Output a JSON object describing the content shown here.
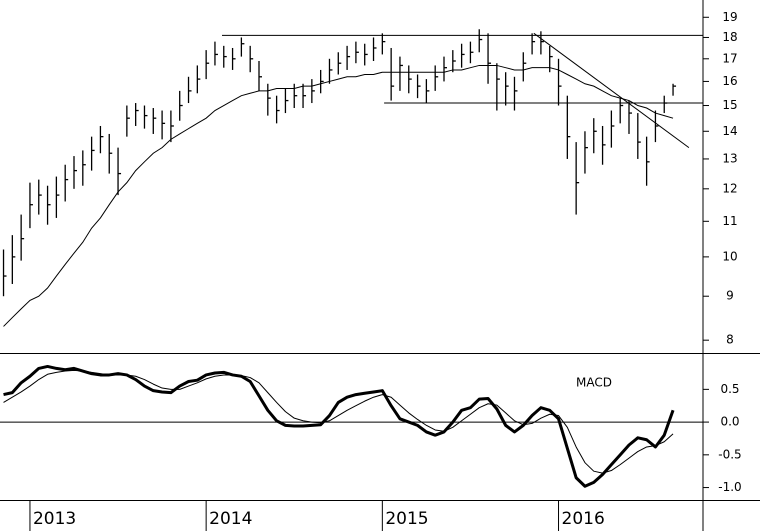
{
  "chart_data": [
    {
      "type": "ohlc",
      "log": true,
      "x": [
        2012.85,
        2012.9,
        2012.95,
        2013,
        2013.05,
        2013.1,
        2013.15,
        2013.2,
        2013.25,
        2013.3,
        2013.35,
        2013.4,
        2013.45,
        2013.5,
        2013.55,
        2013.6,
        2013.65,
        2013.7,
        2013.75,
        2013.8,
        2013.85,
        2013.9,
        2013.95,
        2014,
        2014.05,
        2014.1,
        2014.15,
        2014.2,
        2014.25,
        2014.3,
        2014.35,
        2014.4,
        2014.45,
        2014.5,
        2014.55,
        2014.6,
        2014.65,
        2014.7,
        2014.75,
        2014.8,
        2014.85,
        2014.9,
        2014.95,
        2015,
        2015.05,
        2015.1,
        2015.15,
        2015.2,
        2015.25,
        2015.3,
        2015.35,
        2015.4,
        2015.45,
        2015.5,
        2015.55,
        2015.6,
        2015.65,
        2015.7,
        2015.75,
        2015.8,
        2015.85,
        2015.9,
        2015.95,
        2016,
        2016.05,
        2016.1,
        2016.15,
        2016.2,
        2016.25,
        2016.3,
        2016.35,
        2016.4,
        2016.45,
        2016.5,
        2016.55,
        2016.6,
        2016.65
      ],
      "high": [
        10.2,
        10.6,
        11.2,
        12.2,
        12.3,
        12.1,
        12.4,
        12.8,
        13.1,
        13.3,
        13.8,
        14.2,
        13.9,
        13.4,
        15.0,
        15.1,
        15.0,
        14.9,
        14.8,
        14.8,
        15.6,
        16.2,
        16.7,
        17.4,
        17.8,
        17.6,
        17.5,
        18.0,
        17.6,
        16.9,
        15.9,
        15.4,
        15.7,
        15.9,
        15.9,
        16.1,
        16.5,
        17.0,
        17.3,
        17.6,
        17.8,
        17.7,
        18.0,
        18.2,
        17.5,
        17.1,
        16.7,
        16.3,
        16.1,
        16.7,
        17.1,
        17.4,
        17.7,
        17.8,
        18.4,
        18.2,
        16.8,
        16.4,
        16.2,
        17.3,
        18.2,
        18.3,
        17.6,
        17.0,
        15.4,
        13.6,
        14.0,
        14.5,
        14.2,
        14.8,
        15.3,
        15.2,
        14.7,
        13.8,
        14.8,
        15.4,
        15.9
      ],
      "low": [
        9.0,
        9.3,
        9.9,
        10.8,
        11.2,
        10.9,
        11.1,
        11.6,
        12.0,
        12.1,
        12.6,
        13.2,
        12.5,
        11.8,
        13.8,
        14.2,
        14.1,
        13.9,
        13.7,
        13.6,
        14.4,
        15.1,
        15.5,
        16.1,
        16.7,
        16.6,
        16.5,
        17.1,
        16.4,
        15.6,
        14.6,
        14.3,
        14.7,
        14.9,
        14.9,
        15.1,
        15.5,
        15.9,
        16.3,
        16.5,
        16.8,
        16.7,
        16.9,
        17.2,
        15.2,
        15.6,
        15.5,
        15.3,
        15.1,
        15.6,
        16.0,
        16.4,
        16.6,
        16.8,
        17.3,
        15.9,
        14.8,
        15.0,
        14.8,
        16.0,
        17.2,
        17.2,
        16.4,
        15.0,
        13.0,
        11.2,
        12.5,
        13.2,
        12.8,
        13.4,
        14.3,
        13.9,
        13.0,
        12.1,
        13.6,
        14.7,
        15.4
      ],
      "close": [
        9.5,
        10.0,
        10.5,
        11.5,
        11.8,
        11.5,
        11.8,
        12.3,
        12.6,
        12.8,
        13.3,
        13.8,
        13.2,
        12.5,
        14.5,
        14.8,
        14.6,
        14.5,
        14.3,
        14.2,
        15.0,
        15.6,
        16.1,
        16.8,
        17.2,
        17.1,
        17.0,
        17.7,
        17.0,
        16.2,
        15.3,
        14.8,
        15.2,
        15.4,
        15.4,
        15.6,
        16.0,
        16.5,
        16.8,
        17.1,
        17.3,
        17.2,
        17.5,
        17.8,
        15.8,
        16.7,
        16.1,
        15.8,
        15.6,
        16.2,
        16.6,
        16.9,
        17.2,
        17.3,
        17.9,
        16.8,
        16.1,
        15.8,
        15.6,
        16.8,
        17.8,
        17.8,
        17.1,
        15.8,
        13.8,
        12.2,
        13.4,
        14.0,
        13.5,
        14.2,
        15.0,
        14.7,
        13.6,
        12.9,
        14.2,
        15.1,
        15.8
      ],
      "ma": [
        8.3,
        8.5,
        8.7,
        8.9,
        9.0,
        9.2,
        9.5,
        9.8,
        10.1,
        10.4,
        10.8,
        11.1,
        11.5,
        11.9,
        12.2,
        12.6,
        12.9,
        13.2,
        13.4,
        13.7,
        13.9,
        14.1,
        14.3,
        14.5,
        14.8,
        15.0,
        15.2,
        15.4,
        15.5,
        15.6,
        15.6,
        15.7,
        15.7,
        15.7,
        15.8,
        15.8,
        15.9,
        16.0,
        16.1,
        16.2,
        16.2,
        16.3,
        16.3,
        16.4,
        16.4,
        16.4,
        16.4,
        16.4,
        16.4,
        16.4,
        16.4,
        16.5,
        16.5,
        16.6,
        16.7,
        16.7,
        16.7,
        16.6,
        16.5,
        16.5,
        16.6,
        16.6,
        16.6,
        16.5,
        16.3,
        16.1,
        15.9,
        15.8,
        15.6,
        15.4,
        15.3,
        15.2,
        15.0,
        14.9,
        14.7,
        14.6,
        14.5
      ],
      "lines": [
        {
          "x": [
            2014.09,
            2016.82
          ],
          "y": [
            18.1,
            18.1
          ]
        },
        {
          "x": [
            2015.01,
            2016.82
          ],
          "y": [
            15.1,
            15.1
          ]
        },
        {
          "x": [
            2015.86,
            2016.74
          ],
          "y": [
            18.2,
            13.4
          ]
        }
      ],
      "ylim": [
        7.73,
        19.9
      ],
      "yticks": [
        8,
        9,
        10,
        11,
        12,
        13,
        14,
        15,
        16,
        17,
        18,
        19
      ]
    },
    {
      "type": "line",
      "annotation": "MACD",
      "x": [
        2012.85,
        2012.9,
        2012.95,
        2013,
        2013.05,
        2013.1,
        2013.15,
        2013.2,
        2013.25,
        2013.3,
        2013.35,
        2013.4,
        2013.45,
        2013.5,
        2013.55,
        2013.6,
        2013.65,
        2013.7,
        2013.75,
        2013.8,
        2013.85,
        2013.9,
        2013.95,
        2014,
        2014.05,
        2014.1,
        2014.15,
        2014.2,
        2014.25,
        2014.3,
        2014.35,
        2014.4,
        2014.45,
        2014.5,
        2014.55,
        2014.6,
        2014.65,
        2014.7,
        2014.75,
        2014.8,
        2014.85,
        2014.9,
        2014.95,
        2015,
        2015.05,
        2015.1,
        2015.15,
        2015.2,
        2015.25,
        2015.3,
        2015.35,
        2015.4,
        2015.45,
        2015.5,
        2015.55,
        2015.6,
        2015.65,
        2015.7,
        2015.75,
        2015.8,
        2015.85,
        2015.9,
        2015.95,
        2016,
        2016.05,
        2016.1,
        2016.15,
        2016.2,
        2016.25,
        2016.3,
        2016.35,
        2016.4,
        2016.45,
        2016.5,
        2016.55,
        2016.6,
        2016.65
      ],
      "series": [
        {
          "color": "#000000",
          "width": 3,
          "values": [
            0.42,
            0.45,
            0.6,
            0.7,
            0.82,
            0.85,
            0.82,
            0.8,
            0.82,
            0.78,
            0.74,
            0.72,
            0.72,
            0.74,
            0.72,
            0.65,
            0.55,
            0.48,
            0.46,
            0.45,
            0.55,
            0.62,
            0.64,
            0.72,
            0.75,
            0.76,
            0.72,
            0.7,
            0.62,
            0.4,
            0.18,
            0.02,
            -0.05,
            -0.06,
            -0.06,
            -0.05,
            -0.04,
            0.1,
            0.3,
            0.38,
            0.42,
            0.44,
            0.46,
            0.48,
            0.25,
            0.05,
            0.0,
            -0.05,
            -0.15,
            -0.2,
            -0.15,
            0.0,
            0.18,
            0.22,
            0.35,
            0.36,
            0.2,
            -0.05,
            -0.15,
            -0.05,
            0.1,
            0.22,
            0.18,
            0.05,
            -0.4,
            -0.85,
            -0.98,
            -0.92,
            -0.8,
            -0.65,
            -0.5,
            -0.35,
            -0.24,
            -0.27,
            -0.38,
            -0.2,
            0.18
          ]
        },
        {
          "color": "#000000",
          "width": 1,
          "values": [
            0.3,
            0.38,
            0.46,
            0.55,
            0.65,
            0.73,
            0.76,
            0.78,
            0.79,
            0.78,
            0.76,
            0.74,
            0.72,
            0.72,
            0.72,
            0.7,
            0.65,
            0.58,
            0.52,
            0.5,
            0.5,
            0.55,
            0.6,
            0.66,
            0.7,
            0.72,
            0.72,
            0.71,
            0.68,
            0.6,
            0.45,
            0.3,
            0.16,
            0.06,
            0.02,
            0.0,
            -0.01,
            0.02,
            0.1,
            0.18,
            0.25,
            0.32,
            0.38,
            0.42,
            0.38,
            0.26,
            0.14,
            0.04,
            -0.05,
            -0.12,
            -0.14,
            -0.08,
            0.02,
            0.12,
            0.22,
            0.28,
            0.26,
            0.14,
            0.02,
            -0.04,
            -0.02,
            0.06,
            0.12,
            0.1,
            -0.08,
            -0.38,
            -0.62,
            -0.75,
            -0.78,
            -0.74,
            -0.65,
            -0.55,
            -0.45,
            -0.38,
            -0.36,
            -0.3,
            -0.18
          ]
        }
      ],
      "zero_line": 0,
      "ylim": [
        -1.19,
        1.04
      ],
      "yticks": [
        {
          "value": -1,
          "label": "-1.0"
        },
        -0.5,
        {
          "value": 0,
          "label": "0.0"
        },
        0.5
      ],
      "xlim": [
        2012.83,
        2016.82
      ],
      "xticks": [
        2013,
        2014,
        2015,
        2016
      ]
    }
  ]
}
